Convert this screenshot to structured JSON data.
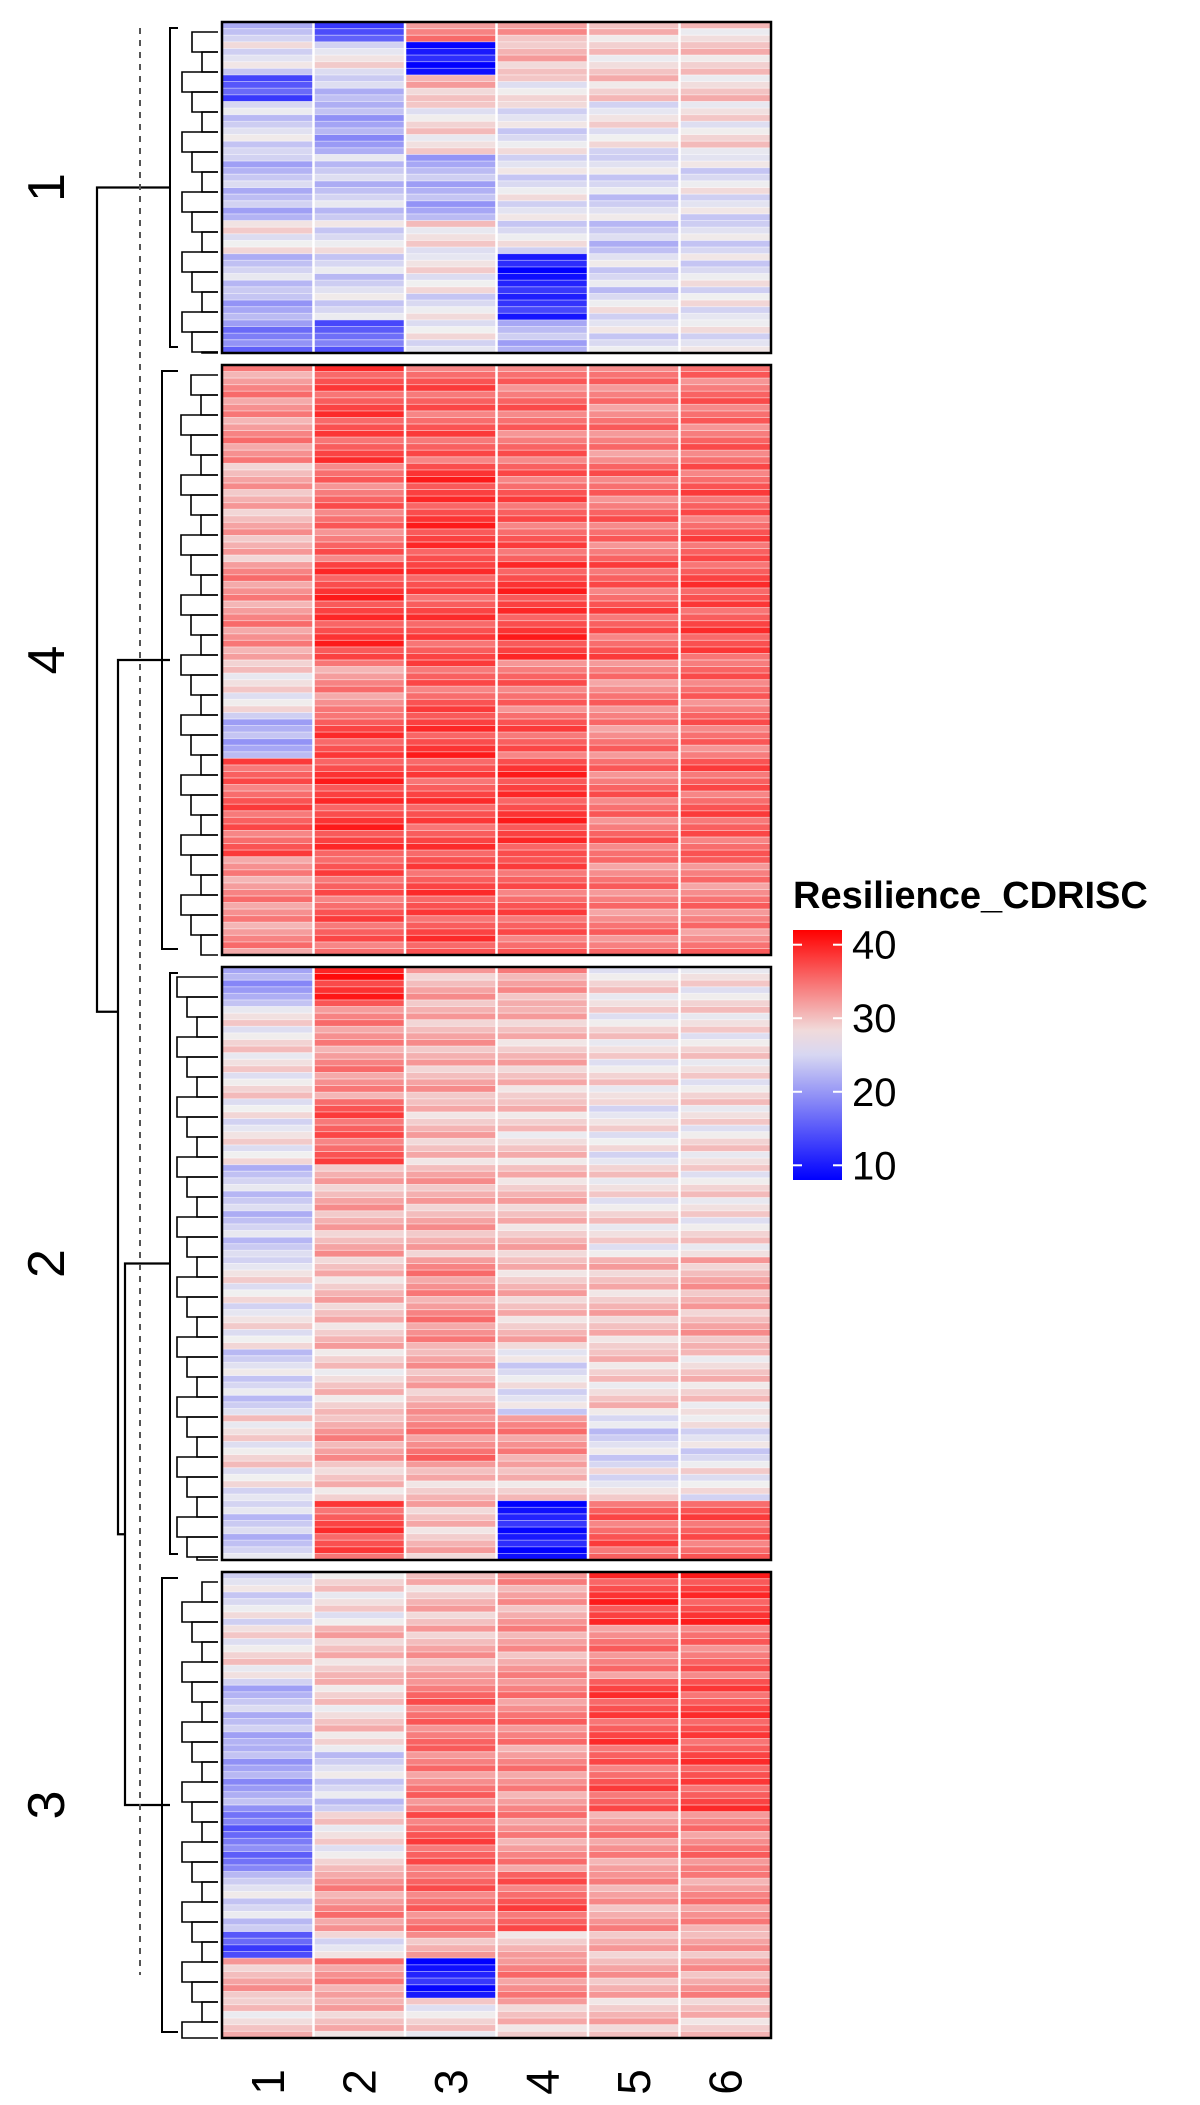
{
  "chart_data": {
    "type": "heatmap",
    "title": "",
    "xlabel": "",
    "ylabel": "",
    "columns": [
      "1",
      "2",
      "3",
      "4",
      "5",
      "6"
    ],
    "row_clusters": [
      {
        "label": "1",
        "rows": 50,
        "bands": [
          {
            "cells": [
              24,
              14,
              33,
              32,
              29,
              29
            ],
            "n": 3
          },
          {
            "cells": [
              26,
              27,
              10,
              30,
              29,
              29
            ],
            "n": 5
          },
          {
            "cells": [
              14,
              24,
              30,
              28,
              29,
              29
            ],
            "n": 4
          },
          {
            "cells": [
              25,
              21,
              28,
              26,
              27,
              28
            ],
            "n": 8
          },
          {
            "cells": [
              23,
              24,
              22,
              26,
              25,
              26
            ],
            "n": 10
          },
          {
            "cells": [
              27,
              26,
              28,
              26,
              24,
              25
            ],
            "n": 5
          },
          {
            "cells": [
              24,
              25,
              27,
              10,
              25,
              26
            ],
            "n": 6
          },
          {
            "cells": [
              22,
              25,
              26,
              12,
              26,
              27
            ],
            "n": 4
          },
          {
            "cells": [
              18,
              16,
              27,
              22,
              26,
              26
            ],
            "n": 5
          }
        ]
      },
      {
        "label": "4",
        "rows": 90,
        "bands": [
          {
            "cells": [
              33,
              37,
              36,
              35,
              34,
              35
            ],
            "n": 15
          },
          {
            "cells": [
              31,
              35,
              38,
              36,
              35,
              36
            ],
            "n": 15
          },
          {
            "cells": [
              33,
              38,
              37,
              38,
              36,
              37
            ],
            "n": 15
          },
          {
            "cells": [
              28,
              33,
              36,
              35,
              34,
              35
            ],
            "n": 8
          },
          {
            "cells": [
              22,
              37,
              38,
              36,
              34,
              35
            ],
            "n": 7
          },
          {
            "cells": [
              36,
              38,
              37,
              38,
              35,
              36
            ],
            "n": 15
          },
          {
            "cells": [
              33,
              36,
              37,
              36,
              34,
              34
            ],
            "n": 15
          }
        ]
      },
      {
        "label": "2",
        "rows": 90,
        "bands": [
          {
            "cells": [
              21,
              39,
              31,
              32,
              28,
              28
            ],
            "n": 6
          },
          {
            "cells": [
              28,
              33,
              31,
              30,
              28,
              28
            ],
            "n": 14
          },
          {
            "cells": [
              27,
              36,
              30,
              29,
              27,
              28
            ],
            "n": 10
          },
          {
            "cells": [
              24,
              31,
              31,
              30,
              28,
              28
            ],
            "n": 14
          },
          {
            "cells": [
              27,
              30,
              33,
              30,
              30,
              31
            ],
            "n": 14
          },
          {
            "cells": [
              25,
              29,
              31,
              26,
              29,
              29
            ],
            "n": 10
          },
          {
            "cells": [
              28,
              32,
              34,
              33,
              25,
              26
            ],
            "n": 8
          },
          {
            "cells": [
              27,
              29,
              30,
              29,
              27,
              27
            ],
            "n": 5
          },
          {
            "cells": [
              24,
              37,
              30,
              10,
              36,
              36
            ],
            "n": 9
          }
        ]
      },
      {
        "label": "3",
        "rows": 70,
        "bands": [
          {
            "cells": [
              26,
              28,
              30,
              32,
              38,
              38
            ],
            "n": 8
          },
          {
            "cells": [
              28,
              30,
              31,
              32,
              34,
              35
            ],
            "n": 8
          },
          {
            "cells": [
              23,
              29,
              35,
              34,
              37,
              37
            ],
            "n": 10
          },
          {
            "cells": [
              21,
              25,
              34,
              33,
              36,
              37
            ],
            "n": 10
          },
          {
            "cells": [
              17,
              28,
              36,
              33,
              33,
              34
            ],
            "n": 9
          },
          {
            "cells": [
              25,
              33,
              35,
              36,
              32,
              33
            ],
            "n": 9
          },
          {
            "cells": [
              14,
              27,
              31,
              30,
              31,
              31
            ],
            "n": 4
          },
          {
            "cells": [
              31,
              33,
              10,
              34,
              31,
              32
            ],
            "n": 6
          },
          {
            "cells": [
              29,
              30,
              28,
              30,
              30,
              30
            ],
            "n": 6
          }
        ]
      }
    ],
    "legend": {
      "title": "Resilience_CDRISC",
      "ticks": [
        40,
        30,
        20,
        10
      ],
      "range": [
        8,
        42
      ],
      "colors": {
        "low": "#0000ff",
        "mid": "#f0f0f0",
        "high": "#ff0000"
      },
      "placement": "right"
    }
  }
}
